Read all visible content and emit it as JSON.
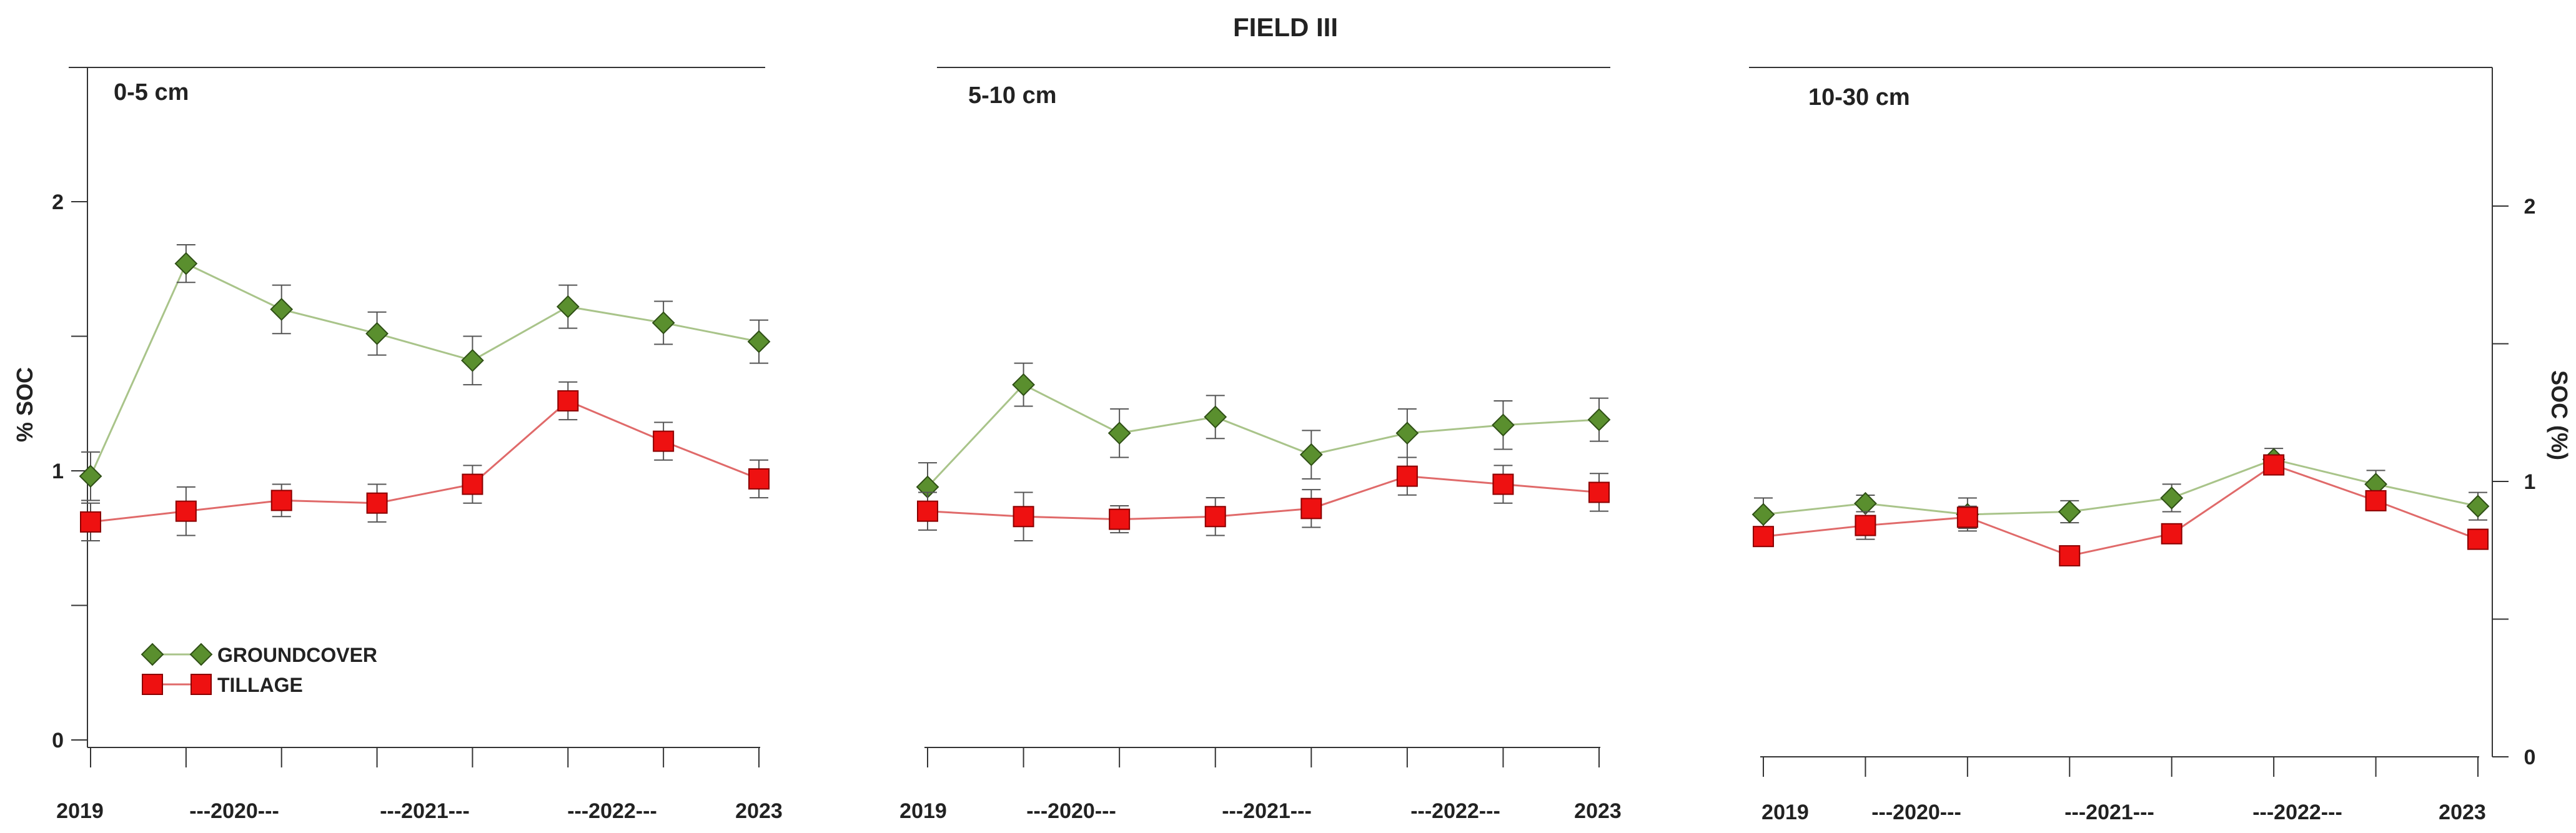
{
  "colors": {
    "groundcover_fill": "#5a8f2e",
    "groundcover_line": "#a9c48a",
    "tillage_fill": "#ee1111",
    "tillage_line": "#e06a6a",
    "axis": "#333333",
    "errorbar": "#555555"
  },
  "chart_data": {
    "type": "line",
    "title": "FIELD III",
    "ylabel_left": "% SOC",
    "ylabel_right": "SOC (%)",
    "legend": {
      "position": "bottom-left",
      "entries": [
        "GROUNDCOVER",
        "TILLAGE"
      ]
    },
    "x_tick_labels": [
      "2019",
      "---2020---",
      "---2021---",
      "---2022---",
      "2023"
    ],
    "series_names": [
      "GROUNDCOVER",
      "TILLAGE"
    ],
    "panels": [
      {
        "label": "0-5 cm",
        "ylim": [
          0,
          2.5
        ],
        "y_ticks": [
          "0",
          "1",
          "2"
        ],
        "n_points": 8,
        "series": [
          {
            "name": "GROUNDCOVER",
            "values": [
              0.98,
              1.77,
              1.6,
              1.51,
              1.41,
              1.61,
              1.55,
              1.48
            ],
            "errors": [
              0.09,
              0.07,
              0.09,
              0.08,
              0.09,
              0.08,
              0.08,
              0.08
            ]
          },
          {
            "name": "TILLAGE",
            "values": [
              0.81,
              0.85,
              0.89,
              0.88,
              0.95,
              1.26,
              1.11,
              0.97
            ],
            "errors": [
              0.07,
              0.09,
              0.06,
              0.07,
              0.07,
              0.07,
              0.07,
              0.07
            ]
          }
        ]
      },
      {
        "label": "5-10 cm",
        "ylim": [
          0,
          2.5
        ],
        "y_ticks": [],
        "n_points": 8,
        "series": [
          {
            "name": "GROUNDCOVER",
            "values": [
              0.94,
              1.32,
              1.14,
              1.2,
              1.06,
              1.14,
              1.17,
              1.19
            ],
            "errors": [
              0.09,
              0.08,
              0.09,
              0.08,
              0.09,
              0.09,
              0.09,
              0.08
            ]
          },
          {
            "name": "TILLAGE",
            "values": [
              0.85,
              0.83,
              0.82,
              0.83,
              0.86,
              0.98,
              0.95,
              0.92
            ],
            "errors": [
              0.07,
              0.09,
              0.05,
              0.07,
              0.07,
              0.07,
              0.07,
              0.07
            ]
          }
        ]
      },
      {
        "label": "10-30 cm",
        "ylim": [
          0,
          2.5
        ],
        "y_ticks": [
          "0",
          "1",
          "2"
        ],
        "n_points": 8,
        "series": [
          {
            "name": "GROUNDCOVER",
            "values": [
              0.88,
              0.92,
              0.88,
              0.89,
              0.94,
              1.08,
              0.99,
              0.91
            ],
            "errors": [
              0.06,
              0.03,
              0.06,
              0.04,
              0.05,
              0.04,
              0.05,
              0.05
            ]
          },
          {
            "name": "TILLAGE",
            "values": [
              0.8,
              0.84,
              0.87,
              0.73,
              0.81,
              1.06,
              0.93,
              0.79
            ],
            "errors": [
              0.03,
              0.05,
              0.04,
              0.03,
              0.03,
              0.03,
              0.03,
              0.03
            ]
          }
        ]
      }
    ]
  }
}
